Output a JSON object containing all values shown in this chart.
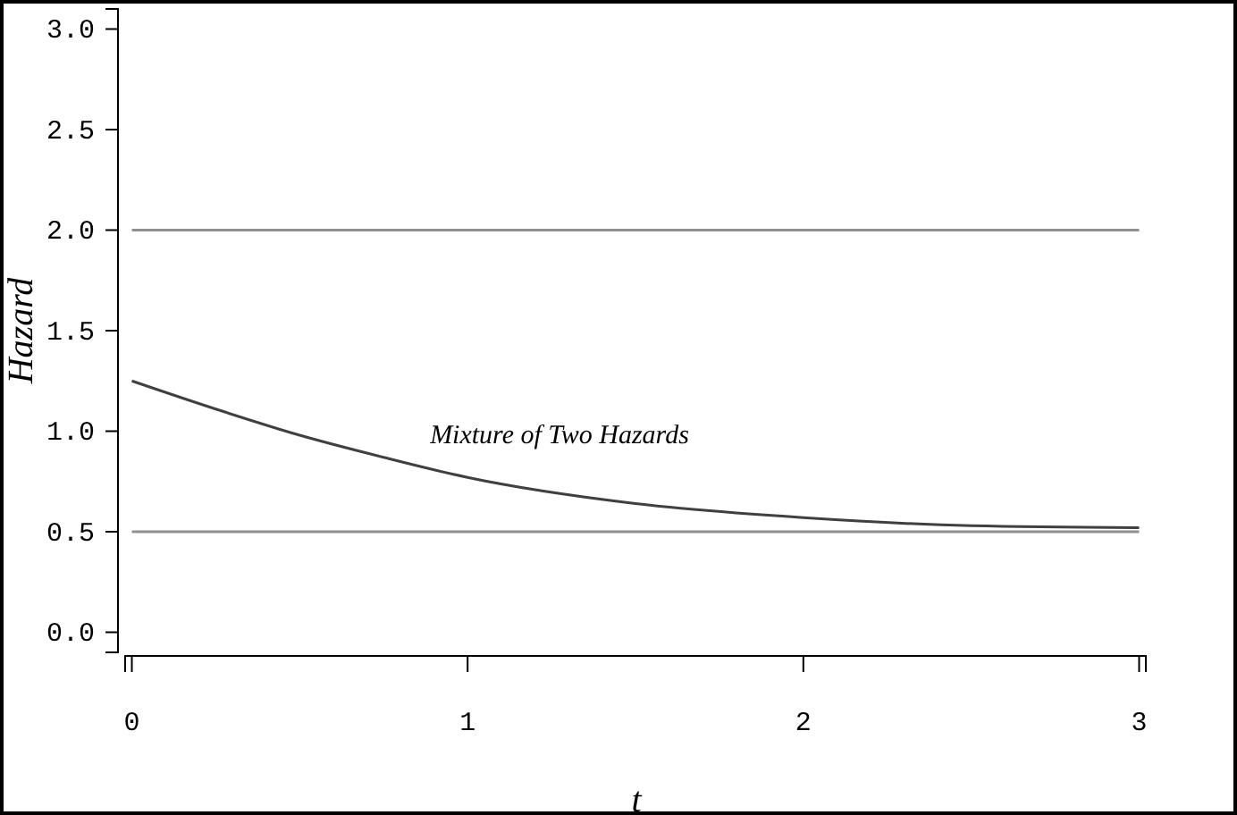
{
  "chart_data": {
    "type": "line",
    "xlabel": "t",
    "ylabel": "Hazard",
    "xlim": [
      -0.02,
      3.02
    ],
    "ylim": [
      -0.1,
      3.1
    ],
    "xticks": [
      0,
      1,
      2,
      3
    ],
    "yticks": [
      {
        "value": 0,
        "label": "0.0"
      },
      {
        "value": 0.5,
        "label": "0.5"
      },
      {
        "value": 1,
        "label": "1.0"
      },
      {
        "value": 1.5,
        "label": "1.5"
      },
      {
        "value": 2,
        "label": "2.0"
      },
      {
        "value": 2.5,
        "label": "2.5"
      },
      {
        "value": 3,
        "label": "3.0"
      }
    ],
    "grid": false,
    "line_style": "solid",
    "marker": "none",
    "series": [
      {
        "color": "#909090",
        "x": [
          0,
          3
        ],
        "values": [
          2,
          2
        ]
      },
      {
        "color": "#909090",
        "x": [
          0,
          3
        ],
        "values": [
          0.5,
          0.5
        ]
      },
      {
        "color": "#404040",
        "x": [
          0,
          0.25,
          0.5,
          0.75,
          1,
          1.5,
          2,
          2.5,
          3
        ],
        "values": [
          1.25,
          1.11,
          0.98,
          0.87,
          0.77,
          0.64,
          0.57,
          0.53,
          0.52
        ]
      }
    ],
    "annotations": [
      "Mixture of Two Hazards"
    ]
  }
}
